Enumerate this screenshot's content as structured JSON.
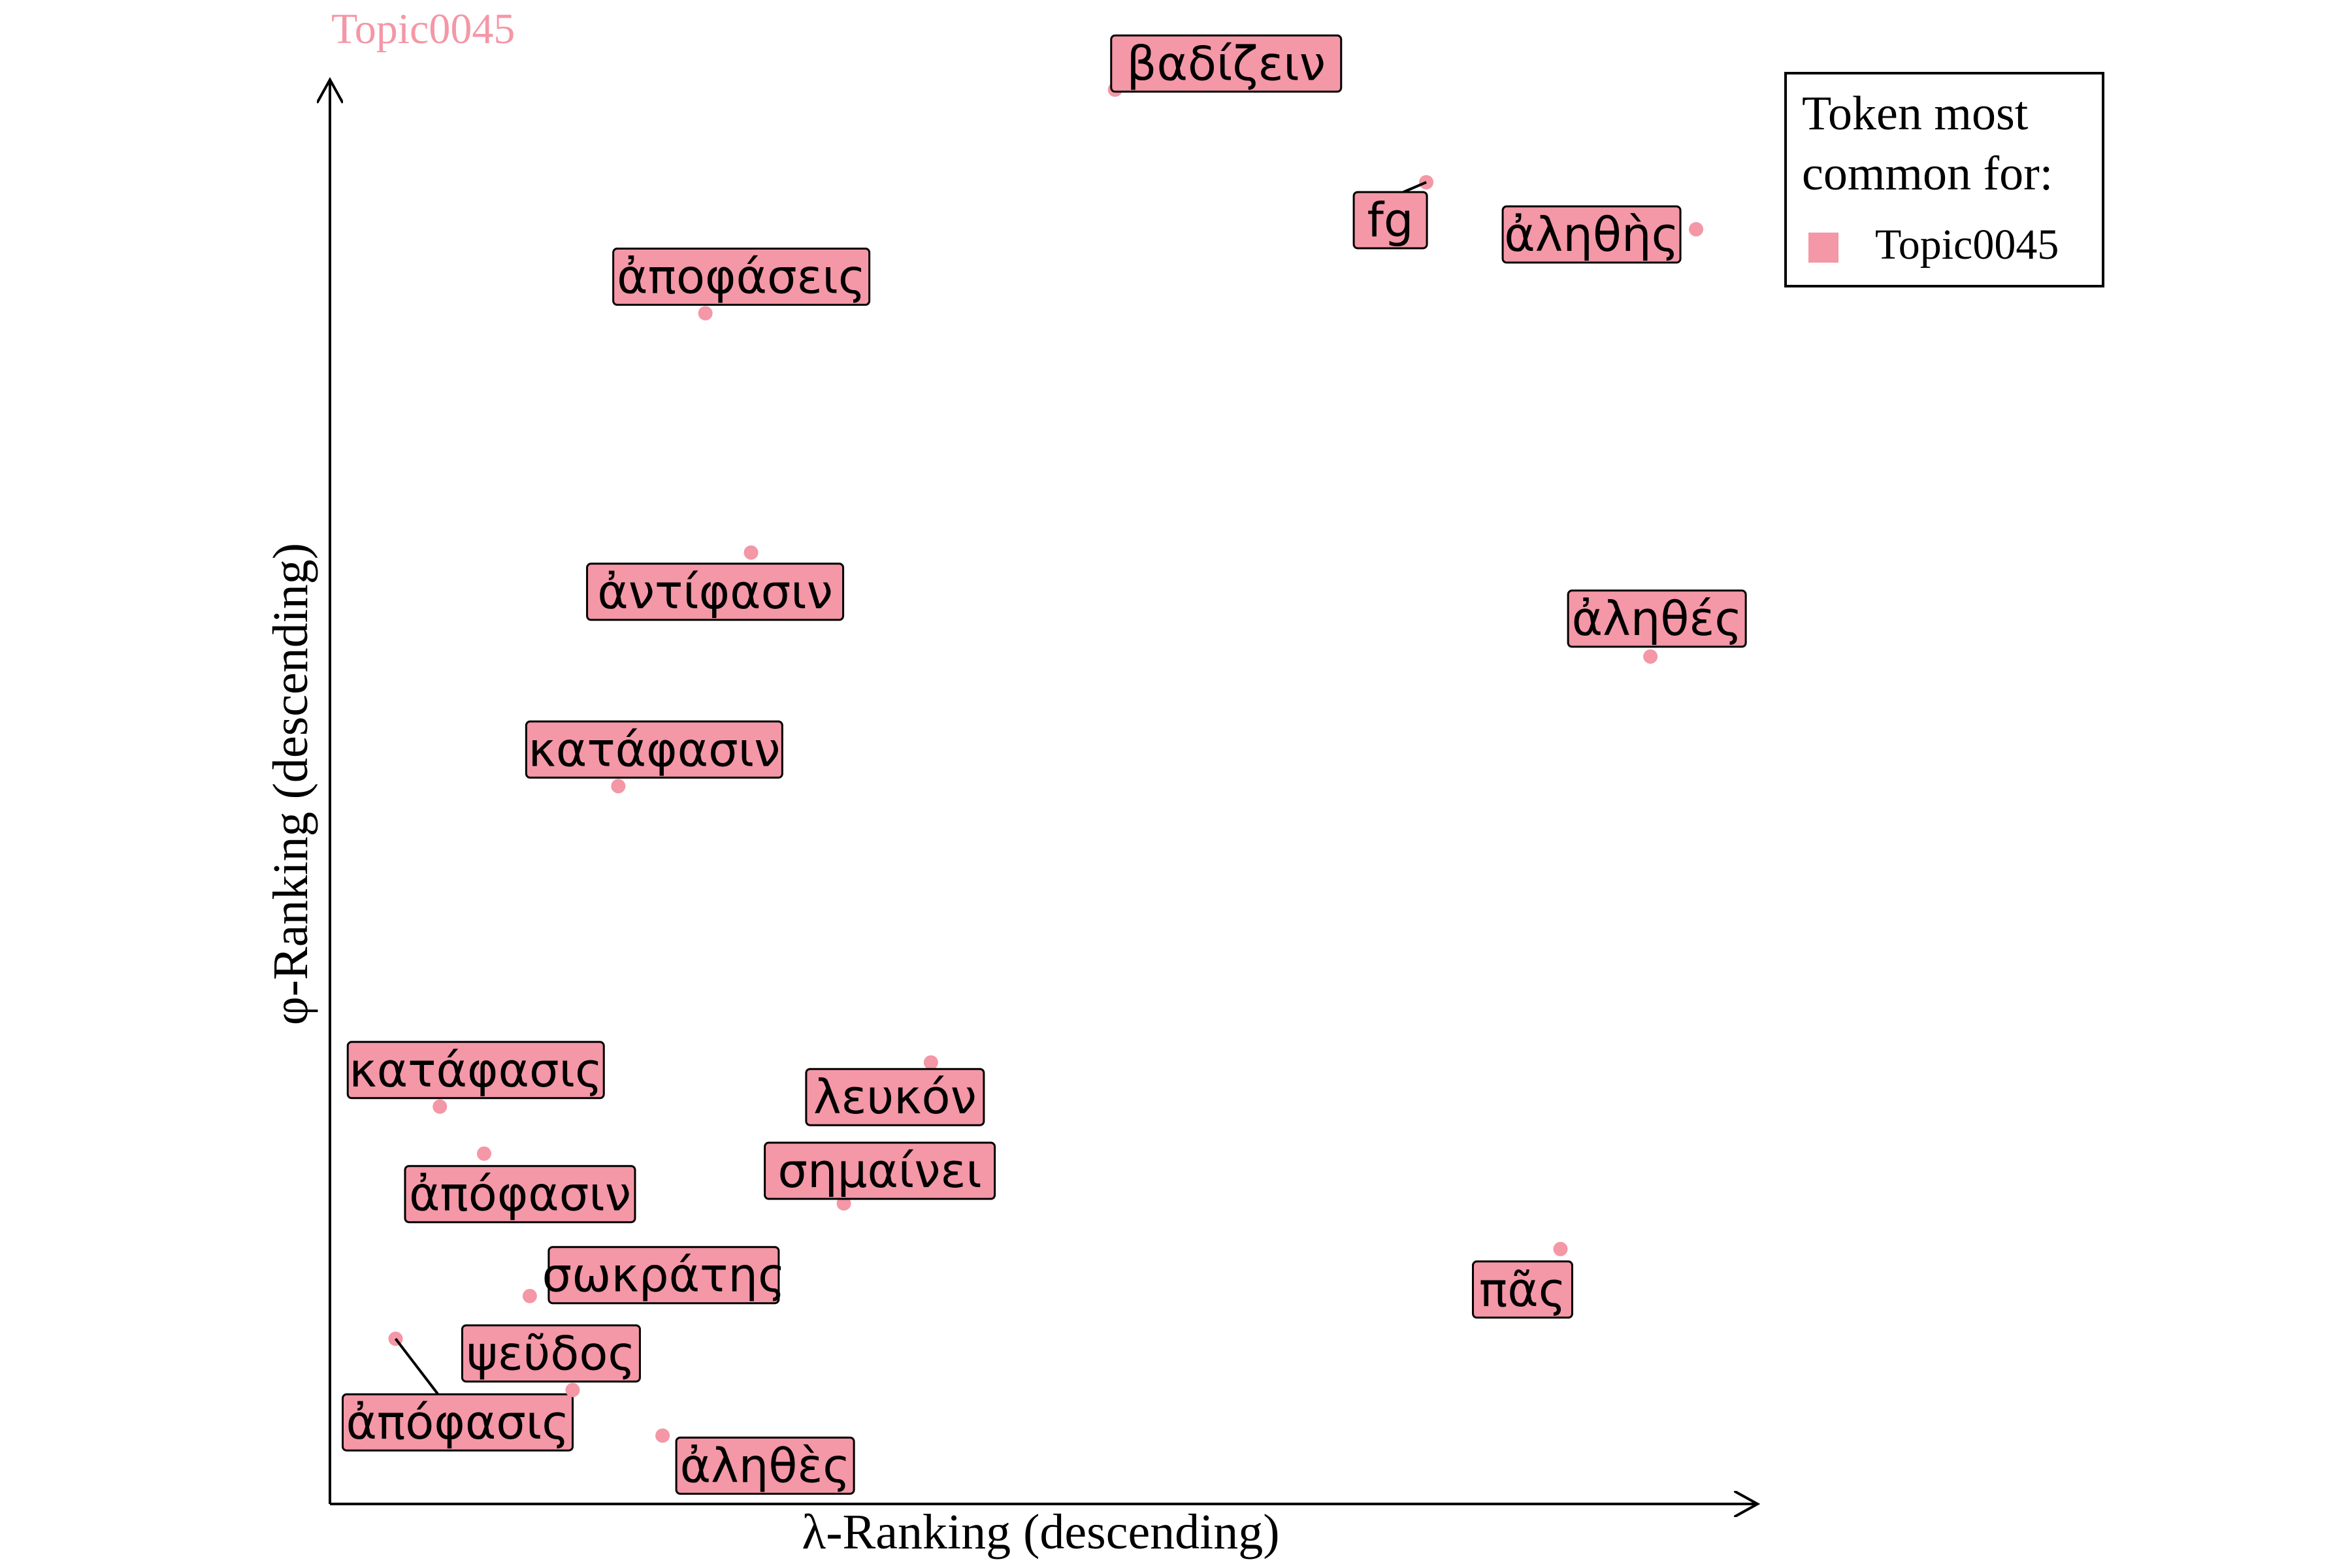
{
  "chart_data": {
    "type": "scatter",
    "title": "Topic0045",
    "xlabel": "λ-Ranking (descending)",
    "ylabel": "φ-Ranking (descending)",
    "xlim": [
      0,
      100
    ],
    "ylim": [
      0,
      100
    ],
    "grid": false,
    "legend": {
      "position": "top-right",
      "title": "Token most common for:",
      "items": [
        {
          "label": "Topic0045",
          "color": "#f497a6"
        }
      ]
    },
    "series": [
      {
        "name": "Topic0045",
        "color": "#f497a6",
        "points": [
          {
            "label": "βαδίζειν",
            "x": 55.0,
            "y": 99.3
          },
          {
            "label": "fg",
            "x": 76.8,
            "y": 92.8
          },
          {
            "label": "ἀληθὴς",
            "x": 95.7,
            "y": 89.5
          },
          {
            "label": "ἀποφάσεις",
            "x": 26.3,
            "y": 83.6
          },
          {
            "label": "ἀντίφασιν",
            "x": 29.5,
            "y": 66.8
          },
          {
            "label": "ἀληθές",
            "x": 92.5,
            "y": 59.5
          },
          {
            "label": "κατάφασιν",
            "x": 20.2,
            "y": 50.4
          },
          {
            "label": "λευκόν",
            "x": 42.1,
            "y": 31.0
          },
          {
            "label": "κατάφασις",
            "x": 7.7,
            "y": 27.9
          },
          {
            "label": "ἀπόφασιν",
            "x": 10.8,
            "y": 24.6
          },
          {
            "label": "σημαίνει",
            "x": 36.0,
            "y": 21.1
          },
          {
            "label": "πᾶς",
            "x": 86.2,
            "y": 17.9
          },
          {
            "label": "σωκράτης",
            "x": 14.0,
            "y": 14.6
          },
          {
            "label": "ἀπόφασις",
            "x": 4.6,
            "y": 11.6
          },
          {
            "label": "ψεῦδος",
            "x": 17.0,
            "y": 8.0
          },
          {
            "label": "ἀληθὲς",
            "x": 23.3,
            "y": 4.8
          }
        ]
      }
    ]
  }
}
